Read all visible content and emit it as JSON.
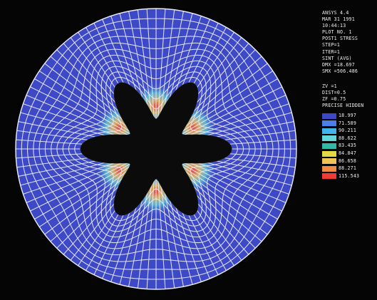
{
  "header_lines": [
    "ANSYS 4.4",
    "MAR 31 1991",
    "10:44:13",
    "PLOT NO.  1",
    "POST1 STRESS",
    "STEP=1",
    "ITER=1",
    "SINT   (AVG)",
    "DMX =18.697",
    "SMX =506.486"
  ],
  "view_lines": [
    "ZV  =1",
    "DIST=0.5",
    "ZF  =0.75",
    "PRECISE HIDDEN"
  ],
  "legend": [
    {
      "label": "18.997",
      "color": "#3c48c4"
    },
    {
      "label": "71.589",
      "color": "#4a7ee8"
    },
    {
      "label": "90.211",
      "color": "#43b4ea"
    },
    {
      "label": "88.622",
      "color": "#62d6d9"
    },
    {
      "label": "83.435",
      "color": "#2fb9a6"
    },
    {
      "label": "84.847",
      "color": "#e3d847"
    },
    {
      "label": "86.658",
      "color": "#eec456"
    },
    {
      "label": "88.271",
      "color": "#f08a40"
    },
    {
      "label": "115.543",
      "color": "#ef3b35"
    }
  ],
  "colors": {
    "background": "#050505",
    "mesh_fill": "#3d49c7",
    "mesh_lines": "#e6e8f6",
    "hole": "#0b0b0b"
  }
}
